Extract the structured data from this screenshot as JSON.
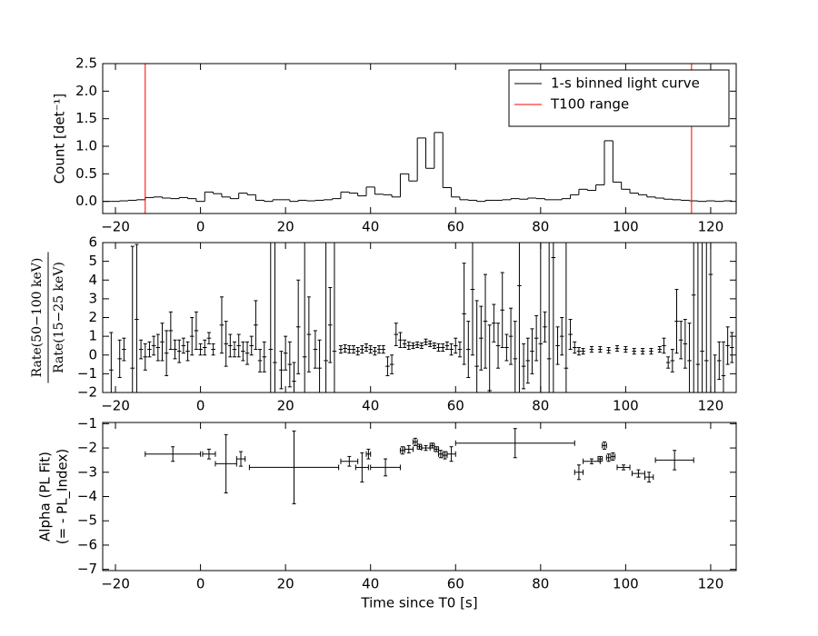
{
  "chart_data": [
    {
      "type": "step",
      "ylabel": "Count [det⁻¹]",
      "xlim": [
        -23,
        126
      ],
      "ylim": [
        -0.22,
        2.5
      ],
      "xticks": [
        {
          "value": -20,
          "label": "−20"
        },
        0,
        20,
        40,
        60,
        80,
        100,
        120
      ],
      "yticks": [
        {
          "value": 0,
          "label": "0.0"
        },
        0.5,
        {
          "value": 1,
          "label": "1.0"
        },
        1.5,
        {
          "value": 2,
          "label": "2.0"
        },
        2.5
      ],
      "legend": "upper right",
      "series": [
        {
          "name": "1-s binned light curve",
          "color": "#000000",
          "x": [
            -23,
            -21,
            -19,
            -17,
            -15,
            -13,
            -11,
            -9,
            -7,
            -5,
            -3,
            -1,
            1,
            3,
            5,
            7,
            9,
            11,
            13,
            15,
            17,
            19,
            21,
            23,
            25,
            27,
            29,
            31,
            33,
            35,
            37,
            39,
            41,
            43,
            45,
            47,
            49,
            51,
            53,
            55,
            57,
            59,
            61,
            63,
            65,
            67,
            69,
            71,
            73,
            75,
            77,
            79,
            81,
            83,
            85,
            87,
            89,
            91,
            93,
            95,
            97,
            99,
            101,
            103,
            105,
            107,
            109,
            111,
            113,
            115,
            117,
            119,
            121,
            123
          ],
          "values": [
            0.0,
            0.0,
            0.01,
            0.02,
            0.03,
            0.07,
            0.08,
            0.06,
            0.05,
            0.07,
            0.05,
            0.0,
            0.17,
            0.14,
            0.08,
            0.05,
            0.15,
            0.12,
            0.02,
            0.0,
            0.03,
            0.03,
            0.0,
            0.02,
            0.01,
            0.02,
            0.03,
            0.05,
            0.17,
            0.15,
            0.1,
            0.26,
            0.13,
            0.12,
            0.08,
            0.5,
            0.37,
            1.15,
            0.6,
            1.25,
            0.25,
            0.08,
            0.03,
            0.02,
            0.0,
            0.02,
            0.02,
            0.03,
            0.05,
            0.04,
            0.06,
            0.05,
            0.03,
            0.03,
            0.05,
            0.12,
            0.22,
            0.2,
            0.3,
            1.1,
            0.35,
            0.22,
            0.15,
            0.12,
            0.08,
            0.06,
            0.04,
            0.03,
            0.02,
            0.01,
            0.0,
            0.01,
            0.0,
            0.01
          ]
        }
      ],
      "vlines": {
        "name": "T100 range",
        "color": "#ff0000",
        "x": [
          -13,
          115.5
        ]
      }
    },
    {
      "type": "errorbar",
      "ylabel_numerator": "Rate(50−100 keV)",
      "ylabel_denominator": "Rate(15−25 keV)",
      "xlim": [
        -23,
        126
      ],
      "ylim": [
        -2,
        6
      ],
      "xticks": [
        {
          "value": -20,
          "label": "−20"
        },
        0,
        20,
        40,
        60,
        80,
        100,
        120
      ],
      "yticks": [
        {
          "value": -2,
          "label": "−2"
        },
        {
          "value": -1,
          "label": "−1"
        },
        0,
        1,
        2,
        3,
        4,
        5,
        6
      ],
      "series": [
        {
          "color": "#000000",
          "x": [
            -21,
            -19,
            -18,
            -16,
            -15,
            -14,
            -13,
            -12,
            -11,
            -10,
            -9,
            -8,
            -7,
            -6,
            -5,
            -4,
            -3,
            -2,
            -1,
            0,
            1,
            2,
            3,
            5,
            6,
            7,
            8,
            9,
            10,
            11,
            12,
            13,
            14,
            15,
            16.5,
            17.5,
            19,
            20,
            21,
            22,
            23,
            24.5,
            25.5,
            27,
            28,
            29.5,
            30.5,
            31.5,
            33,
            34,
            35,
            36,
            37,
            38,
            39,
            40,
            41,
            42,
            43,
            44,
            45,
            46,
            47,
            48,
            49,
            50,
            51,
            52,
            53,
            54,
            55,
            56,
            57,
            58,
            59,
            60,
            61,
            62,
            63,
            64,
            65,
            66,
            67,
            68,
            69,
            70,
            71,
            72,
            73,
            74,
            75,
            76,
            77,
            78,
            79,
            80,
            81,
            82,
            83,
            84,
            85,
            86,
            87,
            88,
            89,
            90,
            92,
            94,
            96,
            98,
            100,
            102,
            104,
            106,
            108,
            109,
            110,
            111,
            112,
            113,
            114,
            115,
            116,
            117,
            118,
            119,
            120,
            121,
            122,
            123,
            124,
            125
          ],
          "values": [
            -0.8,
            -0.2,
            0.3,
            -0.7,
            1.9,
            0.3,
            -0.1,
            0.3,
            0.5,
            0.4,
            0.7,
            0.1,
            1.3,
            0.3,
            0.2,
            0.5,
            0.2,
            1.0,
            1.3,
            0.3,
            0.4,
            0.9,
            0.3,
            1.6,
            0.6,
            0.5,
            0.3,
            0.5,
            0.2,
            0.1,
            0.5,
            1.6,
            -0.3,
            -0.1,
            0.3,
            -0.4,
            -0.8,
            0.1,
            -0.5,
            -1.4,
            1.5,
            -0.1,
            1.1,
            0.3,
            -0.7,
            -0.3,
            1.6,
            0.2,
            0.3,
            0.35,
            0.3,
            0.3,
            0.2,
            0.3,
            0.4,
            0.3,
            0.2,
            0.3,
            0.3,
            -0.6,
            -0.5,
            1.1,
            0.8,
            0.6,
            0.5,
            0.5,
            0.55,
            0.5,
            0.7,
            0.6,
            0.5,
            0.4,
            0.4,
            0.5,
            0.3,
            0.5,
            0.3,
            2.2,
            0.3,
            3.5,
            -0.6,
            0.9,
            1.8,
            -1.9,
            1.7,
            0.5,
            2.4,
            0.4,
            1.0,
            -0.2,
            3.7,
            -0.6,
            -0.3,
            0.2,
            0.9,
            0.6,
            1.5,
            -0.2,
            5.2,
            0.5,
            1.0,
            -0.7,
            1.1,
            0.4,
            0.2,
            0.2,
            0.3,
            0.3,
            0.25,
            0.35,
            0.3,
            0.2,
            0.2,
            0.2,
            0.3,
            0.5,
            -0.4,
            -0.3,
            1.8,
            0.8,
            0.6,
            -0.3,
            3.2,
            -0.5,
            0.2,
            -0.3,
            4.3,
            -2.0,
            -0.3,
            -1.1,
            0.5,
            0.4
          ],
          "errors": [
            2,
            1,
            0.6,
            6.5,
            4,
            0.5,
            0.7,
            0.4,
            0.5,
            0.7,
            1,
            1.2,
            1,
            0.5,
            0.6,
            0.4,
            0.5,
            1,
            1,
            0.3,
            0.4,
            0.3,
            0.3,
            1.5,
            1.2,
            0.6,
            0.4,
            0.6,
            0.5,
            0.6,
            0.5,
            1.3,
            0.6,
            0.8,
            8,
            8,
            1,
            0.9,
            1.2,
            1,
            2.5,
            8,
            2,
            1,
            1.5,
            8,
            2,
            8,
            0.2,
            0.2,
            0.2,
            0.2,
            0.2,
            0.2,
            0.2,
            0.2,
            0.2,
            0.2,
            0.2,
            0.5,
            0.5,
            0.6,
            0.4,
            0.2,
            0.2,
            0.15,
            0.15,
            0.15,
            0.15,
            0.15,
            0.15,
            0.2,
            0.2,
            0.2,
            0.3,
            0.4,
            0.4,
            2.7,
            1.5,
            3.5,
            3.5,
            1.7,
            2.5,
            3.5,
            1,
            1.2,
            2,
            0.7,
            1.5,
            2,
            8,
            1.2,
            1.2,
            1.2,
            1.2,
            8,
            0.8,
            8,
            8,
            1,
            1,
            8,
            0.8,
            0.3,
            0.2,
            0.15,
            0.15,
            0.15,
            0.15,
            0.15,
            0.15,
            0.15,
            0.15,
            0.15,
            0.15,
            0.4,
            0.3,
            0.6,
            1.7,
            1,
            1.3,
            2,
            8,
            8,
            8,
            8,
            8,
            2,
            1,
            1.8,
            1,
            0.8
          ]
        }
      ]
    },
    {
      "type": "errorbar",
      "ylabel": [
        "Alpha (PL Fit)",
        "(= - PL_Index)"
      ],
      "xlabel": "Time since T0 [s]",
      "xlim": [
        -23,
        126
      ],
      "ylim": [
        -7.05,
        -0.95
      ],
      "xticks": [
        {
          "value": -20,
          "label": "−20"
        },
        0,
        20,
        40,
        60,
        80,
        100,
        120
      ],
      "yticks": [
        {
          "value": -7,
          "label": "−7"
        },
        {
          "value": -6,
          "label": "−6"
        },
        {
          "value": -5,
          "label": "−5"
        },
        {
          "value": -4,
          "label": "−4"
        },
        {
          "value": -3,
          "label": "−3"
        },
        {
          "value": -2,
          "label": "−2"
        },
        {
          "value": -1,
          "label": "−1"
        }
      ],
      "series": [
        {
          "color": "#000000",
          "x": [
            -6.5,
            2,
            6,
            9.5,
            22,
            35,
            38,
            39.5,
            43.5,
            47.5,
            49,
            50.5,
            51.5,
            53,
            54.5,
            55.5,
            56.5,
            57.5,
            59,
            74,
            89,
            92,
            94,
            95,
            96,
            97,
            99.5,
            103,
            105.5,
            111.5
          ],
          "xerrors": [
            6.5,
            1.5,
            2.5,
            1,
            10.5,
            2,
            1.5,
            0.5,
            3.5,
            0.5,
            1,
            0.5,
            0.5,
            1,
            0.5,
            0.5,
            0.5,
            0.5,
            1,
            14,
            1,
            2,
            0.5,
            0.5,
            0.5,
            0.5,
            1.5,
            1.5,
            1,
            4.5
          ],
          "values": [
            -2.25,
            -2.25,
            -2.65,
            -2.45,
            -2.8,
            -2.55,
            -2.8,
            -2.25,
            -2.8,
            -2.1,
            -2.05,
            -1.75,
            -1.95,
            -2.0,
            -1.9,
            -2.05,
            -2.25,
            -2.3,
            -2.25,
            -1.8,
            -3.0,
            -2.55,
            -2.45,
            -1.9,
            -2.4,
            -2.35,
            -2.8,
            -3.05,
            -3.2,
            -2.5
          ],
          "errors": [
            0.3,
            0.2,
            1.2,
            0.3,
            1.5,
            0.2,
            0.6,
            0.2,
            0.35,
            0.15,
            0.15,
            0.15,
            0.1,
            0.1,
            0.1,
            0.1,
            0.15,
            0.15,
            0.3,
            0.6,
            0.3,
            0.1,
            0.1,
            0.15,
            0.15,
            0.15,
            0.1,
            0.15,
            0.2,
            0.4
          ]
        }
      ]
    }
  ]
}
